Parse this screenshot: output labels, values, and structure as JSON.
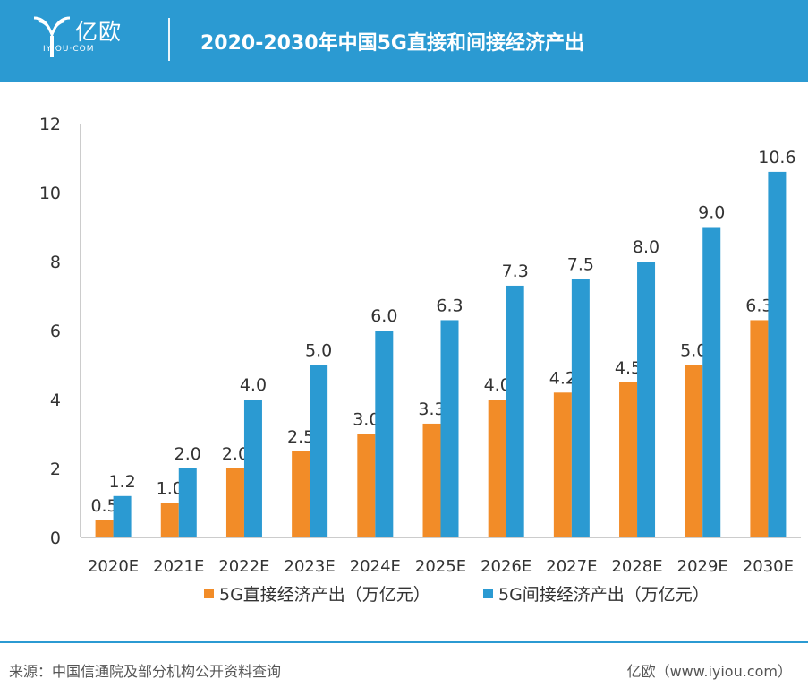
{
  "header": {
    "logo_cn": "亿欧",
    "logo_en": "IYIOU·COM",
    "title": "2020-2030年中国5G直接和间接经济产出"
  },
  "colors": {
    "header_bg": "#2b9ad2",
    "direct": "#f28c28",
    "indirect": "#2b9ad2"
  },
  "chart_data": {
    "type": "bar",
    "title": "2020-2030年中国5G直接和间接经济产出",
    "categories": [
      "2020E",
      "2021E",
      "2022E",
      "2023E",
      "2024E",
      "2025E",
      "2026E",
      "2027E",
      "2028E",
      "2029E",
      "2030E"
    ],
    "series": [
      {
        "name": "5G直接经济产出（万亿元）",
        "values": [
          0.5,
          1.0,
          2.0,
          2.5,
          3.0,
          3.3,
          4.0,
          4.2,
          4.5,
          5.0,
          6.3
        ],
        "labels": [
          "0.5",
          "1.0",
          "2.0",
          "2.5",
          "3.0",
          "3.3",
          "4.0",
          "4.2",
          "4.5",
          "5.0",
          "6.3"
        ]
      },
      {
        "name": "5G间接经济产出（万亿元）",
        "values": [
          1.2,
          2.0,
          4.0,
          5.0,
          6.0,
          6.3,
          7.3,
          7.5,
          8.0,
          9.0,
          10.6
        ],
        "labels": [
          "1.2",
          "2.0",
          "4.0",
          "5.0",
          "6.0",
          "6.3",
          "7.3",
          "7.5",
          "8.0",
          "9.0",
          "10.6"
        ]
      }
    ],
    "yticks": [
      "0",
      "2",
      "4",
      "6",
      "8",
      "10",
      "12"
    ],
    "ylim": [
      0,
      12
    ],
    "xlabel": "",
    "ylabel": "",
    "legend": "bottom"
  },
  "footer": {
    "source": "来源：中国信通院及部分机构公开资料查询",
    "site": "亿欧（www.iyiou.com）"
  }
}
